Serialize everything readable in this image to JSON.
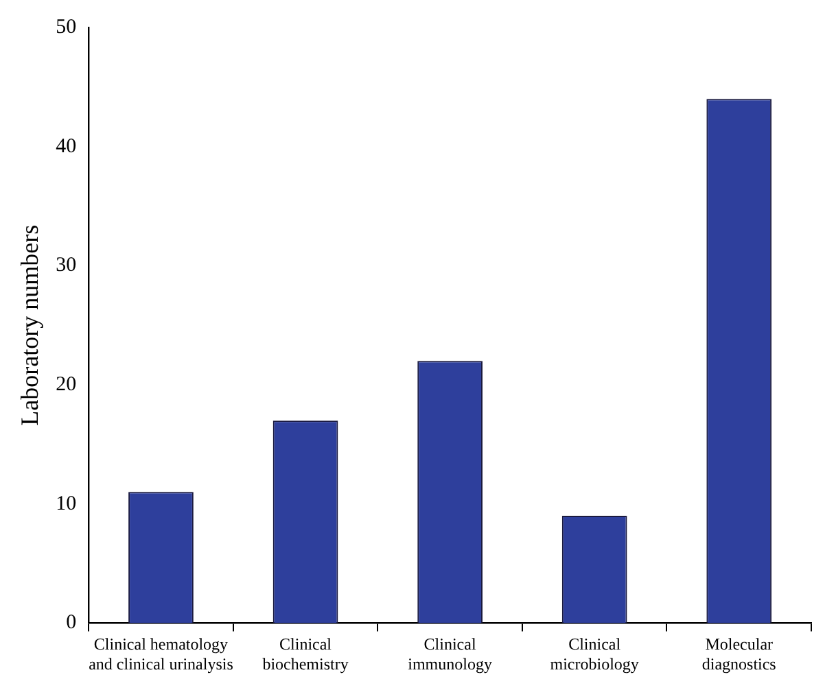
{
  "chart_data": {
    "type": "bar",
    "ylabel": "Laboratory numbers",
    "categories": [
      "Clinical hematology\nand clinical urinalysis",
      "Clinical\nbiochemistry",
      "Clinical\nimmunology",
      "Clinical\nmicrobiology",
      "Molecular\ndiagnostics"
    ],
    "values": [
      11,
      17,
      22,
      9,
      44
    ],
    "color": "#2e3f9c",
    "ylim": [
      0,
      50
    ],
    "yticks": [
      0,
      10,
      20,
      30,
      40,
      50
    ],
    "grid": false,
    "legend": false
  }
}
